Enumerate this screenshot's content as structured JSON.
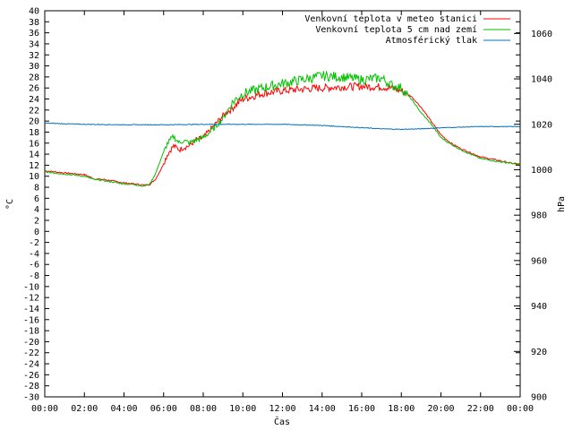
{
  "chart_data": {
    "type": "line",
    "xlabel": "Čas",
    "ylabel_left": "°C",
    "ylabel_right": "hPa",
    "ylim_left": [
      -30,
      40
    ],
    "ylim_right": [
      900,
      1070
    ],
    "xlim": [
      0,
      24
    ],
    "x_ticks": [
      "00:00",
      "02:00",
      "04:00",
      "06:00",
      "08:00",
      "10:00",
      "12:00",
      "14:00",
      "16:00",
      "18:00",
      "20:00",
      "22:00",
      "00:00"
    ],
    "y_ticks_left": [
      40,
      38,
      36,
      34,
      32,
      30,
      28,
      26,
      24,
      22,
      20,
      18,
      16,
      14,
      12,
      10,
      8,
      6,
      4,
      2,
      0,
      -2,
      -4,
      -6,
      -8,
      -10,
      -12,
      -14,
      -16,
      -18,
      -20,
      -22,
      -24,
      -26,
      -28,
      -30
    ],
    "y_ticks_right": [
      1060,
      1040,
      1020,
      1000,
      980,
      960,
      940,
      920,
      900
    ],
    "grid": false,
    "legend_position": "top-right",
    "series": [
      {
        "name": "Venkovní teplota v meteo stanici",
        "axis": "left",
        "color": "#ff0000",
        "x": [
          0,
          1,
          2,
          2.5,
          3,
          4,
          4.5,
          5,
          5.3,
          5.6,
          5.9,
          6.2,
          6.5,
          6.8,
          7,
          7.3,
          7.6,
          8,
          8.5,
          9,
          9.5,
          10,
          10.5,
          11,
          12,
          13,
          14,
          15,
          16,
          17,
          17.5,
          18,
          18.5,
          19,
          19.5,
          20,
          20.5,
          21,
          22,
          23,
          24
        ],
        "y": [
          11,
          10.6,
          10.3,
          9.5,
          9.4,
          8.8,
          8.6,
          8.4,
          8.5,
          9.5,
          11.5,
          14,
          15.5,
          14.8,
          15.2,
          15.5,
          16.5,
          17,
          19,
          21,
          22.5,
          24,
          24.5,
          25,
          25.5,
          25.8,
          26,
          26.2,
          26.3,
          26.2,
          26,
          25.5,
          24.5,
          22.5,
          20,
          17.5,
          16,
          15,
          13.5,
          12.8,
          12
        ]
      },
      {
        "name": "Venkovní teplota 5 cm nad zemí",
        "axis": "left",
        "color": "#00c000",
        "x": [
          0,
          1,
          2,
          2.5,
          3,
          4,
          4.5,
          5,
          5.3,
          5.6,
          5.9,
          6.2,
          6.5,
          6.8,
          7,
          7.3,
          7.6,
          8,
          8.5,
          9,
          9.5,
          10,
          10.5,
          11,
          12,
          13,
          14,
          15,
          16,
          17,
          17.5,
          18,
          18.5,
          19,
          19.5,
          20,
          20.5,
          21,
          22,
          23,
          24
        ],
        "y": [
          10.8,
          10.4,
          10,
          9.4,
          9.2,
          8.6,
          8.5,
          8.2,
          8.6,
          10.5,
          13.5,
          16,
          17.2,
          16,
          16.5,
          16,
          16.5,
          17,
          18.5,
          20.5,
          23.5,
          25,
          25.5,
          26,
          26.8,
          27.5,
          28.2,
          28,
          27.5,
          27.8,
          26.5,
          26,
          24,
          21.5,
          19.5,
          17,
          15.8,
          14.8,
          13.2,
          12.6,
          12.2
        ]
      },
      {
        "name": "Atmosférický tlak",
        "axis": "right",
        "color": "#0070c0",
        "x": [
          0,
          2,
          4,
          6,
          8,
          10,
          12,
          14,
          16,
          17,
          18,
          19,
          20,
          22,
          24
        ],
        "y": [
          1020.5,
          1020,
          1019.8,
          1019.8,
          1020,
          1020,
          1020,
          1019.5,
          1018.5,
          1018,
          1017.8,
          1018,
          1018.5,
          1019,
          1019
        ]
      }
    ]
  }
}
